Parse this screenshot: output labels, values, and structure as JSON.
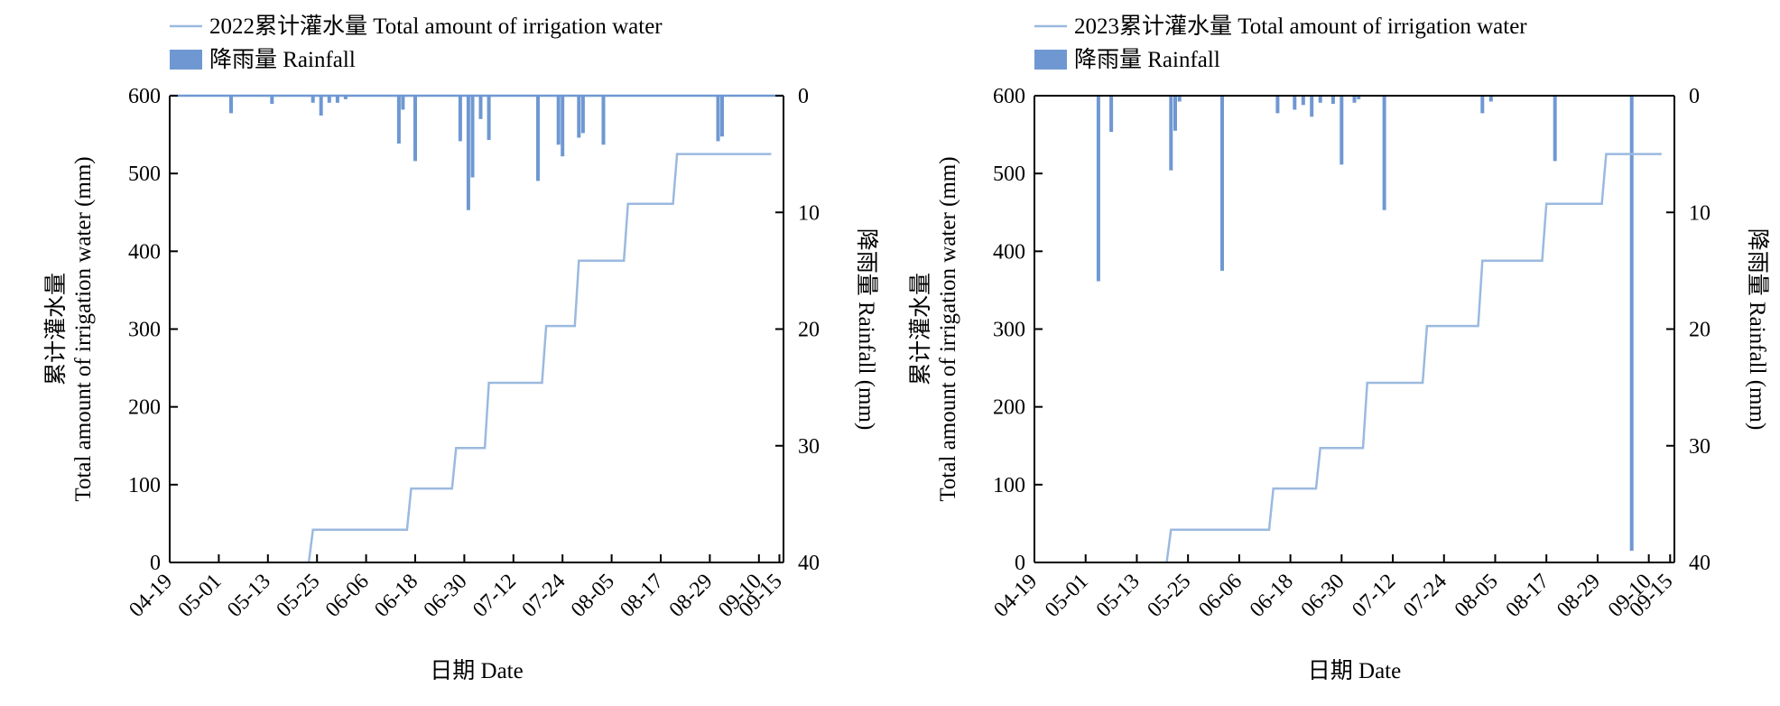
{
  "chart_data": [
    {
      "type": "line",
      "secondary_type": "bar",
      "legend": [
        {
          "label": "2022累计灌水量  Total amount of irrigation water",
          "kind": "line",
          "color": "#9bb9df"
        },
        {
          "label": "降雨量  Rainfall",
          "kind": "bar",
          "color": "#6f98d2"
        }
      ],
      "legend_position": "top-left",
      "xlabel": "日期  Date",
      "ylabel_left_cn": "累计灌水量",
      "ylabel_left_en": "Total amount of irrigation water (mm)",
      "ylabel_right": "降雨量  Rainfall (mm)",
      "x_tick_labels": [
        "04-19",
        "05-01",
        "05-13",
        "05-25",
        "06-06",
        "06-18",
        "06-30",
        "07-12",
        "07-24",
        "08-05",
        "08-17",
        "08-29",
        "09-10",
        "09-15"
      ],
      "x_tick_days": [
        0,
        12,
        24,
        36,
        48,
        60,
        72,
        84,
        96,
        108,
        120,
        132,
        144,
        149
      ],
      "xlim": [
        0,
        150
      ],
      "ylim_left": [
        0,
        600
      ],
      "left_ticks": [
        0,
        100,
        200,
        300,
        400,
        500,
        600
      ],
      "ylim_right": [
        0,
        40
      ],
      "right_ticks": [
        0,
        10,
        20,
        30,
        40
      ],
      "right_axis_inverted": true,
      "frame_top_line": "line",
      "irrigation_series": {
        "name": "2022累计灌水量  Total amount of irrigation water",
        "color": "#9bb9df",
        "x": [
          "05-23",
          "05-24",
          "06-16",
          "06-17",
          "06-27",
          "06-28",
          "07-05",
          "07-06",
          "07-19",
          "07-20",
          "07-27",
          "07-28",
          "08-08",
          "08-09",
          "08-20",
          "08-21",
          "09-01",
          "09-02",
          "09-13"
        ],
        "y": [
          0,
          42,
          42,
          95,
          95,
          147,
          147,
          231,
          231,
          304,
          304,
          388,
          388,
          461,
          461,
          525,
          525,
          525,
          525
        ]
      },
      "rainfall_series": {
        "name": "降雨量  Rainfall",
        "color": "#6f98d2",
        "x": [
          "05-04",
          "05-14",
          "05-24",
          "05-26",
          "05-28",
          "05-30",
          "06-01",
          "06-14",
          "06-15",
          "06-18",
          "06-29",
          "07-01",
          "07-02",
          "07-04",
          "07-06",
          "07-18",
          "07-23",
          "07-24",
          "07-28",
          "07-29",
          "08-03",
          "08-31",
          "09-01"
        ],
        "y": [
          1.5,
          0.7,
          0.6,
          1.7,
          0.6,
          0.6,
          0.3,
          4.1,
          1.2,
          5.6,
          3.9,
          9.8,
          7.0,
          2.0,
          3.8,
          7.3,
          4.2,
          5.2,
          3.6,
          3.2,
          4.2,
          3.9,
          3.5
        ]
      }
    },
    {
      "type": "line",
      "secondary_type": "bar",
      "legend": [
        {
          "label": "2023累计灌水量  Total amount of irrigation water",
          "kind": "line",
          "color": "#9bb9df"
        },
        {
          "label": "降雨量  Rainfall",
          "kind": "bar",
          "color": "#6f98d2"
        }
      ],
      "legend_position": "top-left",
      "xlabel": "日期  Date",
      "ylabel_left_cn": "累计灌水量",
      "ylabel_left_en": "Total amount of irrigation water (mm)",
      "ylabel_right": "降雨量  Rainfall (mm)",
      "x_tick_labels": [
        "04-19",
        "05-01",
        "05-13",
        "05-25",
        "06-06",
        "06-18",
        "06-30",
        "07-12",
        "07-24",
        "08-05",
        "08-17",
        "08-29",
        "09-10",
        "09-15"
      ],
      "x_tick_days": [
        0,
        12,
        24,
        36,
        48,
        60,
        72,
        84,
        96,
        108,
        120,
        132,
        144,
        149
      ],
      "xlim": [
        0,
        150
      ],
      "ylim_left": [
        0,
        600
      ],
      "left_ticks": [
        0,
        100,
        200,
        300,
        400,
        500,
        600
      ],
      "ylim_right": [
        0,
        40
      ],
      "right_ticks": [
        0,
        10,
        20,
        30,
        40
      ],
      "right_axis_inverted": true,
      "frame_top_line": "axis",
      "irrigation_series": {
        "name": "2023累计灌水量  Total amount of irrigation water",
        "color": "#9bb9df",
        "x": [
          "05-20",
          "05-21",
          "06-13",
          "06-14",
          "06-24",
          "06-25",
          "07-05",
          "07-06",
          "07-19",
          "07-20",
          "08-01",
          "08-02",
          "08-16",
          "08-17",
          "08-30",
          "08-31",
          "09-13"
        ],
        "y": [
          0,
          42,
          42,
          95,
          95,
          147,
          147,
          231,
          231,
          304,
          304,
          388,
          388,
          461,
          461,
          525,
          525
        ]
      },
      "rainfall_series": {
        "name": "降雨量  Rainfall",
        "color": "#6f98d2",
        "x": [
          "05-04",
          "05-07",
          "05-21",
          "05-22",
          "05-23",
          "06-02",
          "06-15",
          "06-19",
          "06-21",
          "06-23",
          "06-25",
          "06-28",
          "06-30",
          "07-03",
          "07-04",
          "07-10",
          "08-02",
          "08-04",
          "08-19",
          "09-06"
        ],
        "y": [
          15.9,
          3.1,
          6.4,
          3.0,
          0.5,
          15.0,
          1.5,
          1.2,
          0.8,
          1.8,
          0.6,
          0.7,
          5.9,
          0.6,
          0.3,
          9.8,
          1.5,
          0.5,
          5.6,
          39.0
        ]
      }
    }
  ]
}
